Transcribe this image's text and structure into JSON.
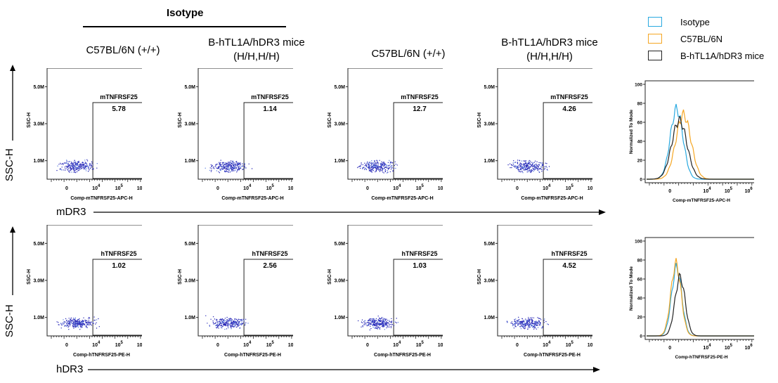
{
  "header": {
    "isotype_label": "Isotype",
    "columns": [
      {
        "line1": "C57BL/6N (+/+)",
        "line2": ""
      },
      {
        "line1": "B-hTL1A/hDR3 mice",
        "line2": "(H/H,H/H)"
      },
      {
        "line1": "C57BL/6N (+/+)",
        "line2": ""
      },
      {
        "line1": "B-hTL1A/hDR3 mice",
        "line2": "(H/H,H/H)"
      }
    ]
  },
  "rows": [
    {
      "axis_label": "SSC-H",
      "x_label": "mDR3"
    },
    {
      "axis_label": "SSC-H",
      "x_label": "hDR3"
    }
  ],
  "legend": [
    {
      "label": "Isotype",
      "color": "#29a9e0"
    },
    {
      "label": "C57BL/6N",
      "color": "#f5a623"
    },
    {
      "label": "B-hTL1A/hDR3 mice",
      "color": "#222222"
    }
  ],
  "chart_data": [
    {
      "type": "scatter",
      "row": 0,
      "col": 0,
      "gate_name": "mTNFRSF25",
      "gate_value": "5.78",
      "ylabel": "SSC-H",
      "xlabel": "Comp-mTNFRSF25-APC-H",
      "y_ticks": [
        "1.0M",
        "3.0M",
        "5.0M"
      ],
      "x_ticks": [
        "0",
        "10^4",
        "10^5",
        "10^6"
      ],
      "ylim": [
        0,
        6000000
      ]
    },
    {
      "type": "scatter",
      "row": 0,
      "col": 1,
      "gate_name": "mTNFRSF25",
      "gate_value": "1.14",
      "ylabel": "SSC-H",
      "xlabel": "Comp-mTNFRSF25-APC-H",
      "y_ticks": [
        "1.0M",
        "3.0M",
        "5.0M"
      ],
      "x_ticks": [
        "0",
        "10^4",
        "10^5",
        "10^6"
      ],
      "ylim": [
        0,
        6000000
      ]
    },
    {
      "type": "scatter",
      "row": 0,
      "col": 2,
      "gate_name": "mTNFRSF25",
      "gate_value": "12.7",
      "ylabel": "SSC-H",
      "xlabel": "Comp-mTNFRSF25-APC-H",
      "y_ticks": [
        "1.0M",
        "3.0M",
        "5.0M"
      ],
      "x_ticks": [
        "0",
        "10^4",
        "10^5",
        "10^6"
      ],
      "ylim": [
        0,
        6000000
      ]
    },
    {
      "type": "scatter",
      "row": 0,
      "col": 3,
      "gate_name": "mTNFRSF25",
      "gate_value": "4.26",
      "ylabel": "SSC-H",
      "xlabel": "Comp-mTNFRSF25-APC-H",
      "y_ticks": [
        "1.0M",
        "3.0M",
        "5.0M"
      ],
      "x_ticks": [
        "0",
        "10^4",
        "10^5",
        "10^6"
      ],
      "ylim": [
        0,
        6000000
      ]
    },
    {
      "type": "scatter",
      "row": 1,
      "col": 0,
      "gate_name": "hTNFRSF25",
      "gate_value": "1.02",
      "ylabel": "SSC-H",
      "xlabel": "Comp-hTNFRSF25-PE-H",
      "y_ticks": [
        "1.0M",
        "3.0M",
        "5.0M"
      ],
      "x_ticks": [
        "0",
        "10^4",
        "10^5",
        "10^6"
      ],
      "ylim": [
        0,
        6000000
      ]
    },
    {
      "type": "scatter",
      "row": 1,
      "col": 1,
      "gate_name": "hTNFRSF25",
      "gate_value": "2.56",
      "ylabel": "SSC-H",
      "xlabel": "Comp-hTNFRSF25-PE-H",
      "y_ticks": [
        "1.0M",
        "3.0M",
        "5.0M"
      ],
      "x_ticks": [
        "0",
        "10^4",
        "10^5",
        "10^6"
      ],
      "ylim": [
        0,
        6000000
      ]
    },
    {
      "type": "scatter",
      "row": 1,
      "col": 2,
      "gate_name": "hTNFRSF25",
      "gate_value": "1.03",
      "ylabel": "SSC-H",
      "xlabel": "Comp-hTNFRSF25-PE-H",
      "y_ticks": [
        "1.0M",
        "3.0M",
        "5.0M"
      ],
      "x_ticks": [
        "0",
        "10^4",
        "10^5",
        "10^6"
      ],
      "ylim": [
        0,
        6000000
      ]
    },
    {
      "type": "scatter",
      "row": 1,
      "col": 3,
      "gate_name": "hTNFRSF25",
      "gate_value": "4.52",
      "ylabel": "SSC-H",
      "xlabel": "Comp-hTNFRSF25-PE-H",
      "y_ticks": [
        "1.0M",
        "3.0M",
        "5.0M"
      ],
      "x_ticks": [
        "0",
        "10^4",
        "10^5",
        "10^6"
      ],
      "ylim": [
        0,
        6000000
      ]
    },
    {
      "type": "line",
      "row": 0,
      "col": 4,
      "xlabel": "Comp-mTNFRSF25-APC-H",
      "ylabel": "Normalized To Mode",
      "ylim": [
        0,
        100
      ],
      "y_ticks": [
        "0",
        "20",
        "40",
        "60",
        "80",
        "100"
      ],
      "x_ticks": [
        "0",
        "10^4",
        "10^5",
        "10^6"
      ],
      "series": [
        {
          "name": "Isotype",
          "peak": 74,
          "shift": 0.0,
          "width": 1.0
        },
        {
          "name": "C57BL/6N",
          "peak": 68,
          "shift": 1.0,
          "width": 1.2
        },
        {
          "name": "B-hTL1A/hDR3 mice",
          "peak": 62,
          "shift": 0.4,
          "width": 1.2
        }
      ]
    },
    {
      "type": "line",
      "row": 1,
      "col": 4,
      "xlabel": "Comp-hTNFRSF25-PE-H",
      "ylabel": "Normalized To Mode",
      "ylim": [
        0,
        100
      ],
      "y_ticks": [
        "0",
        "20",
        "40",
        "60",
        "80",
        "100"
      ],
      "x_ticks": [
        "0",
        "10^4",
        "10^5",
        "10^6"
      ],
      "series": [
        {
          "name": "Isotype",
          "peak": 72,
          "shift": 0.0,
          "width": 0.8
        },
        {
          "name": "C57BL/6N",
          "peak": 76,
          "shift": -0.1,
          "width": 0.8
        },
        {
          "name": "B-hTL1A/hDR3 mice",
          "peak": 62,
          "shift": 0.5,
          "width": 0.8
        }
      ]
    }
  ]
}
